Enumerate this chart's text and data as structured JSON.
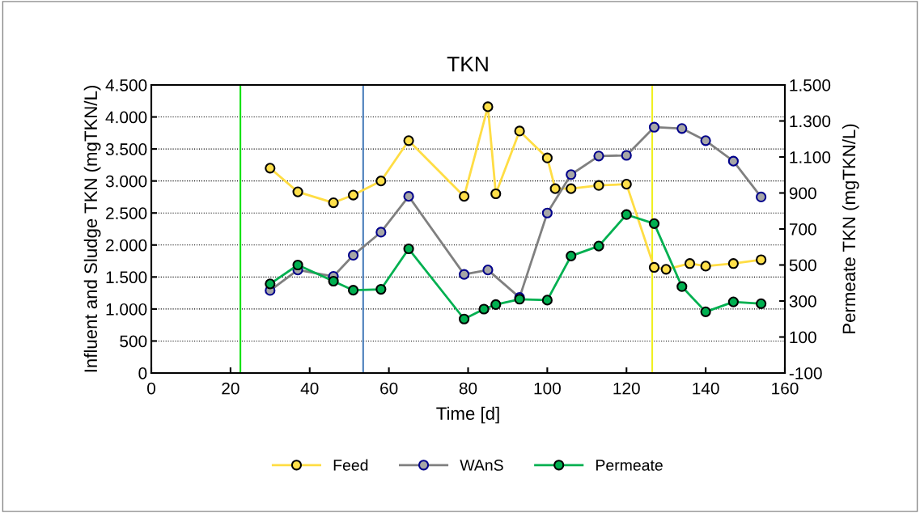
{
  "chart_data": {
    "type": "line",
    "title": "TKN",
    "xlabel": "Time [d]",
    "ylabel": "Influent and Sludge TKN (mgTKN/L)",
    "y2label": "Permeate TKN (mgTKN/L)",
    "series": [
      {
        "name": "Feed",
        "color": "#ffdd44",
        "x": [
          30,
          37,
          46,
          51,
          58,
          65,
          79,
          85,
          87,
          93,
          100,
          102,
          106,
          113,
          120,
          127,
          130,
          136,
          140,
          147,
          154
        ],
        "values": [
          3200,
          2830,
          2660,
          2780,
          3000,
          3630,
          2760,
          4160,
          2800,
          3780,
          3360,
          2880,
          2880,
          2930,
          2950,
          1650,
          1620,
          1710,
          1670,
          1710,
          1770
        ]
      },
      {
        "name": "WAnS",
        "color": "#808080",
        "x": [
          30,
          37,
          46,
          51,
          58,
          65,
          79,
          85,
          93,
          100,
          106,
          113,
          120,
          127,
          134,
          140,
          147,
          154
        ],
        "values": [
          1290,
          1610,
          1510,
          1840,
          2200,
          2760,
          1540,
          1610,
          1180,
          2500,
          3100,
          3390,
          3400,
          3840,
          3820,
          3630,
          3310,
          2750
        ]
      },
      {
        "name": "Permeate",
        "color": "#00b050",
        "axis": "y2",
        "x": [
          30,
          37,
          46,
          51,
          58,
          65,
          79,
          84,
          87,
          93,
          100,
          106,
          113,
          120,
          127,
          134,
          140,
          147,
          154
        ],
        "values": [
          395,
          500,
          410,
          360,
          365,
          590,
          200,
          255,
          280,
          310,
          305,
          550,
          605,
          780,
          730,
          380,
          240,
          295,
          285
        ]
      }
    ],
    "xlim": [
      0,
      160
    ],
    "xticks": [
      0,
      20,
      40,
      60,
      80,
      100,
      120,
      140,
      160
    ],
    "ylim": [
      0,
      4500
    ],
    "yticks": [
      0,
      500,
      {
        "value": 1000,
        "label": "1.000"
      },
      {
        "value": 1500,
        "label": "1.500"
      },
      {
        "value": 2000,
        "label": "2.000"
      },
      {
        "value": 2500,
        "label": "2.500"
      },
      {
        "value": 3000,
        "label": "3.000"
      },
      {
        "value": 3500,
        "label": "3.500"
      },
      {
        "value": 4000,
        "label": "4.000"
      },
      {
        "value": 4500,
        "label": "4.500"
      }
    ],
    "y2lim": [
      -100,
      1500
    ],
    "y2ticks": [
      -100,
      100,
      300,
      500,
      700,
      900,
      {
        "value": 1100,
        "label": "1.100"
      },
      {
        "value": 1300,
        "label": "1.300"
      },
      {
        "value": 1500,
        "label": "1.500"
      }
    ],
    "ref_lines": [
      {
        "axis": "x",
        "value": 22.5,
        "color": "#00e000"
      },
      {
        "axis": "x",
        "value": 53.5,
        "color": "#4a7ebb"
      },
      {
        "axis": "x",
        "value": 126.5,
        "color": "#f0f020"
      }
    ],
    "grid": "y",
    "legend": "bottom",
    "marker": "circle",
    "line_style": "solid"
  }
}
